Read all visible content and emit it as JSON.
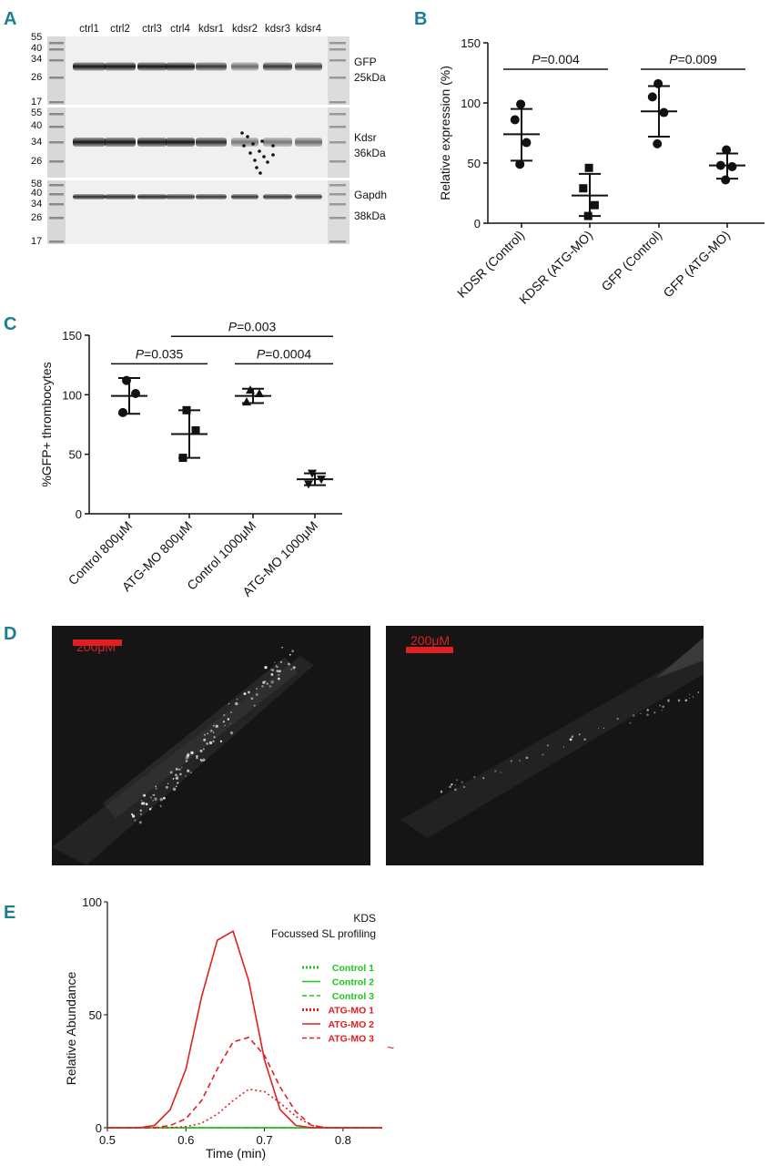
{
  "panels": {
    "A": "A",
    "B": "B",
    "C": "C",
    "D": "D",
    "E": "E"
  },
  "western_blot": {
    "lanes": [
      "ctrl1",
      "ctrl2",
      "ctrl3",
      "ctrl4",
      "kdsr1",
      "kdsr2",
      "kdsr3",
      "kdsr4"
    ],
    "blots": [
      {
        "ladder": [
          "55",
          "40",
          "34",
          "26",
          "17"
        ],
        "target": "GFP",
        "size": "25kDa"
      },
      {
        "ladder": [
          "55",
          "40",
          "34",
          "26"
        ],
        "target": "Kdsr",
        "size": "36kDa"
      },
      {
        "ladder": [
          "58",
          "40",
          "34",
          "26",
          "17"
        ],
        "target": "Gapdh",
        "size": "38kDa"
      }
    ]
  },
  "imaging": {
    "scale_bar_left": "200μM",
    "scale_bar_right": "200μM"
  },
  "chart_data": [
    {
      "panel": "B",
      "type": "scatter",
      "ylabel": "Relative expression (%)",
      "ylim": [
        0,
        150
      ],
      "yticks": [
        "0",
        "50",
        "100",
        "150"
      ],
      "categories": [
        "KDSR (Control)",
        "KDSR (ATG-MO)",
        "GFP (Control)",
        "GFP (ATG-MO)"
      ],
      "markers": [
        "circle",
        "square",
        "circle",
        "circle"
      ],
      "points": [
        [
          99,
          86,
          67,
          49
        ],
        [
          46,
          29,
          15,
          6
        ],
        [
          116,
          105,
          92,
          66
        ],
        [
          61,
          48,
          47,
          36
        ]
      ],
      "mean": [
        74,
        23,
        93,
        48
      ],
      "sd_low": [
        52,
        6,
        72,
        37
      ],
      "sd_high": [
        95,
        41,
        114,
        58
      ],
      "comparisons": [
        {
          "from": 0,
          "to": 1,
          "label": "P=0.004",
          "italic": "P",
          "rest": "=0.004",
          "y": 128
        },
        {
          "from": 2,
          "to": 3,
          "label": "P=0.009",
          "italic": "P",
          "rest": "=0.009",
          "y": 128
        }
      ]
    },
    {
      "panel": "C",
      "type": "scatter",
      "ylabel": "%GFP+ thrombocytes",
      "ylim": [
        0,
        150
      ],
      "yticks": [
        "0",
        "50",
        "100",
        "150"
      ],
      "categories": [
        "Control 800μM",
        "ATG-MO 800μM",
        "Control 1000μM",
        "ATG-MO 1000μM"
      ],
      "markers": [
        "circle",
        "square",
        "triangle",
        "triangle-down"
      ],
      "points": [
        [
          112,
          101,
          85
        ],
        [
          87,
          70,
          47
        ],
        [
          104,
          101,
          94
        ],
        [
          34,
          29,
          25
        ]
      ],
      "mean": [
        99,
        67,
        99,
        29
      ],
      "sd_low": [
        84,
        47,
        93,
        24
      ],
      "sd_high": [
        114,
        87,
        105,
        34
      ],
      "comparisons": [
        {
          "from": 0,
          "to": 1,
          "label": "P=0.035",
          "italic": "P",
          "rest": "=0.035",
          "y": 126
        },
        {
          "from": 1,
          "to": 3,
          "label": "P=0.003",
          "italic": "P",
          "rest": "=0.003",
          "y": 149
        },
        {
          "from": 2,
          "to": 3,
          "label": "P=0.0004",
          "italic": "P",
          "rest": "=0.0004",
          "y": 126
        }
      ]
    },
    {
      "panel": "E",
      "type": "line",
      "xlabel": "Time  (min)",
      "ylabel": "Relative Abundance",
      "xlim": [
        0.5,
        0.85
      ],
      "ylim": [
        0,
        100
      ],
      "xticks": [
        "0.5",
        "0.6",
        "0.7",
        "0.8"
      ],
      "yticks": [
        "0",
        "50",
        "100"
      ],
      "annotation": [
        "KDS",
        "Focussed SL profiling"
      ],
      "x": [
        0.5,
        0.54,
        0.56,
        0.58,
        0.6,
        0.62,
        0.64,
        0.66,
        0.68,
        0.7,
        0.72,
        0.74,
        0.76,
        0.78,
        0.8,
        0.85
      ],
      "series": [
        {
          "name": "Control 1",
          "color": "#22c41e",
          "dash": "dotted",
          "values": [
            0,
            0,
            0,
            0,
            0,
            0,
            0,
            0,
            0,
            0,
            0,
            0,
            0,
            0,
            0,
            0
          ]
        },
        {
          "name": "Control 2",
          "color": "#22c41e",
          "dash": "solid",
          "values": [
            0,
            0,
            0,
            0,
            0,
            0,
            0,
            0,
            0,
            0,
            0,
            0,
            0,
            0,
            0,
            0
          ]
        },
        {
          "name": "Control 3",
          "color": "#22c41e",
          "dash": "dashed",
          "values": [
            0,
            0,
            0,
            0,
            0,
            0,
            0,
            0,
            0,
            0,
            0,
            0,
            0,
            0,
            0,
            0
          ]
        },
        {
          "name": "ATG-MO 1",
          "color": "#e02020",
          "dash": "dotted",
          "values": [
            0,
            0,
            0,
            0,
            0.5,
            2,
            6,
            12,
            17,
            16,
            11,
            5,
            1,
            0,
            0,
            0
          ]
        },
        {
          "name": "ATG-MO 2",
          "color": "#e02020",
          "dash": "solid",
          "values": [
            0,
            0,
            1,
            8,
            26,
            58,
            83,
            87,
            65,
            30,
            8,
            1,
            0,
            0,
            0,
            0
          ]
        },
        {
          "name": "ATG-MO 3",
          "color": "#e02020",
          "dash": "dashed",
          "values": [
            0,
            0,
            0,
            1,
            4,
            12,
            26,
            38,
            40,
            32,
            18,
            7,
            1,
            0,
            0,
            0
          ]
        }
      ]
    }
  ]
}
